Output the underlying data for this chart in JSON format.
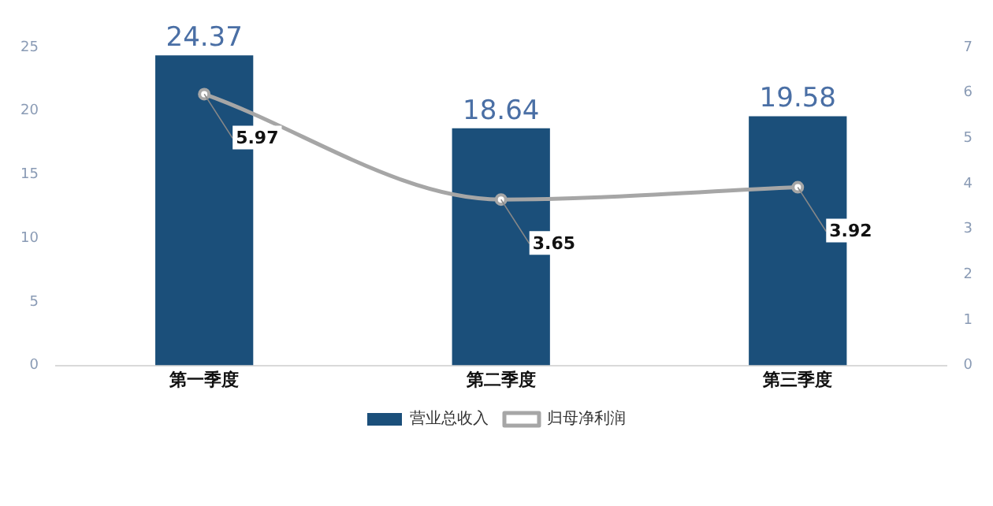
{
  "chart_data": {
    "type": "bar",
    "categories": [
      "第一季度",
      "第二季度",
      "第三季度"
    ],
    "series": [
      {
        "name": "营业总收入",
        "color": "#1b4f7a",
        "values": [
          24.37,
          18.64,
          19.58
        ]
      },
      {
        "name": "归母净利润",
        "type": "line",
        "axis": "y2",
        "color": "#a6a6a6",
        "values": [
          5.97,
          3.65,
          3.92
        ]
      }
    ],
    "ylim": [
      0,
      25
    ],
    "yticks": [
      0,
      5,
      10,
      15,
      20,
      25
    ],
    "y2lim": [
      0,
      7
    ],
    "y2ticks": [
      0,
      1,
      2,
      3,
      4,
      5,
      6,
      7
    ],
    "grid": false,
    "legend": "bottom",
    "marker": "circle",
    "line_style": "solid",
    "data_labels": true
  }
}
